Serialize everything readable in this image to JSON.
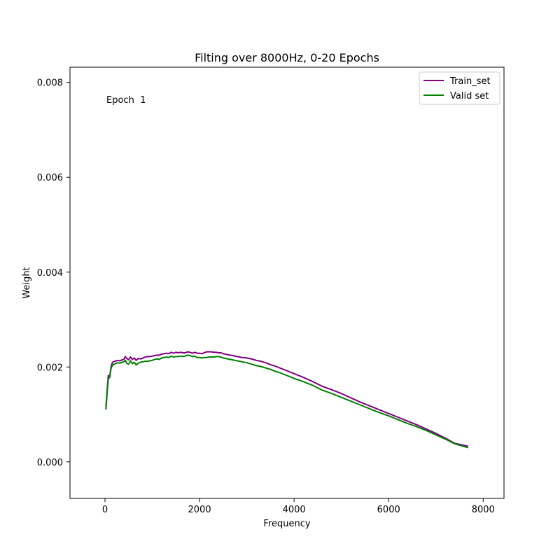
{
  "chart_data": {
    "type": "line",
    "title": "Filting over 8000Hz, 0-20 Epochs",
    "xlabel": "Frequency",
    "ylabel": "Weight",
    "annotation": "Epoch  1",
    "xlim": [
      -740,
      8440
    ],
    "ylim": [
      -0.00077,
      0.00832
    ],
    "xticks": [
      0,
      2000,
      4000,
      6000,
      8000
    ],
    "xtick_labels": [
      "0",
      "2000",
      "4000",
      "6000",
      "8000"
    ],
    "yticks": [
      0.0,
      0.002,
      0.004,
      0.006,
      0.008
    ],
    "ytick_labels": [
      "0.000",
      "0.002",
      "0.004",
      "0.006",
      "0.008"
    ],
    "grid": false,
    "legend_position": "top-right",
    "series": [
      {
        "name": "Train_set",
        "color": "#800080",
        "x": [
          20,
          45,
          70,
          100,
          130,
          160,
          200,
          240,
          280,
          320,
          360,
          400,
          430,
          460,
          500,
          540,
          580,
          620,
          660,
          700,
          750,
          800,
          850,
          900,
          950,
          1000,
          1050,
          1100,
          1150,
          1200,
          1250,
          1300,
          1350,
          1400,
          1450,
          1500,
          1550,
          1600,
          1650,
          1700,
          1750,
          1800,
          1850,
          1900,
          1950,
          2000,
          2050,
          2100,
          2150,
          2200,
          2250,
          2300,
          2350,
          2400,
          2450,
          2500,
          2550,
          2600,
          2700,
          2800,
          2900,
          3000,
          3100,
          3200,
          3300,
          3400,
          3500,
          3600,
          3700,
          3800,
          3900,
          4000,
          4200,
          4400,
          4600,
          4800,
          5000,
          5200,
          5400,
          5600,
          5800,
          6000,
          6200,
          6400,
          6600,
          6800,
          7000,
          7200,
          7400,
          7680
        ],
        "y": [
          0.00115,
          0.0015,
          0.00182,
          0.0018,
          0.00202,
          0.0021,
          0.00212,
          0.00213,
          0.00214,
          0.00213,
          0.00215,
          0.00216,
          0.00222,
          0.00218,
          0.00215,
          0.00221,
          0.00216,
          0.00219,
          0.00214,
          0.00218,
          0.00217,
          0.00219,
          0.00221,
          0.00222,
          0.00222,
          0.00223,
          0.00224,
          0.00225,
          0.00225,
          0.00227,
          0.00228,
          0.00229,
          0.00228,
          0.00231,
          0.00229,
          0.00231,
          0.0023,
          0.00231,
          0.0023,
          0.0023,
          0.00232,
          0.00231,
          0.00229,
          0.00231,
          0.00229,
          0.00229,
          0.00228,
          0.0023,
          0.00232,
          0.00232,
          0.00232,
          0.00231,
          0.00231,
          0.0023,
          0.0023,
          0.00228,
          0.00227,
          0.00226,
          0.00224,
          0.00222,
          0.0022,
          0.00219,
          0.00217,
          0.00214,
          0.00212,
          0.00209,
          0.00205,
          0.00202,
          0.00198,
          0.00194,
          0.0019,
          0.00186,
          0.00178,
          0.00169,
          0.00159,
          0.00152,
          0.00144,
          0.00135,
          0.00126,
          0.00118,
          0.0011,
          0.00102,
          0.00094,
          0.00086,
          0.00078,
          0.00069,
          0.0006,
          0.0005,
          0.00039,
          0.00033
        ]
      },
      {
        "name": "Valid set",
        "color": "#008000",
        "x": [
          20,
          45,
          70,
          100,
          130,
          160,
          200,
          240,
          280,
          320,
          360,
          400,
          430,
          460,
          500,
          540,
          580,
          620,
          660,
          700,
          750,
          800,
          850,
          900,
          950,
          1000,
          1050,
          1100,
          1150,
          1200,
          1250,
          1300,
          1350,
          1400,
          1450,
          1500,
          1550,
          1600,
          1650,
          1700,
          1750,
          1800,
          1850,
          1900,
          1950,
          2000,
          2050,
          2100,
          2150,
          2200,
          2250,
          2300,
          2350,
          2400,
          2450,
          2500,
          2550,
          2600,
          2700,
          2800,
          2900,
          3000,
          3100,
          3200,
          3300,
          3400,
          3500,
          3600,
          3700,
          3800,
          3900,
          4000,
          4200,
          4400,
          4600,
          4800,
          5000,
          5200,
          5400,
          5600,
          5800,
          6000,
          6200,
          6400,
          6600,
          6800,
          7000,
          7200,
          7400,
          7680
        ],
        "y": [
          0.0011,
          0.00145,
          0.00175,
          0.00178,
          0.00198,
          0.00204,
          0.00206,
          0.00208,
          0.00209,
          0.00208,
          0.0021,
          0.00211,
          0.00214,
          0.00208,
          0.00206,
          0.00213,
          0.00207,
          0.0021,
          0.00204,
          0.00208,
          0.0021,
          0.00211,
          0.00212,
          0.00212,
          0.00213,
          0.00214,
          0.00216,
          0.00217,
          0.00216,
          0.00219,
          0.0022,
          0.00221,
          0.0022,
          0.00223,
          0.00221,
          0.00222,
          0.00222,
          0.00223,
          0.00222,
          0.00223,
          0.00225,
          0.00224,
          0.00222,
          0.00223,
          0.0022,
          0.0022,
          0.00219,
          0.0022,
          0.0022,
          0.00221,
          0.00221,
          0.00221,
          0.00222,
          0.00222,
          0.00221,
          0.00219,
          0.00218,
          0.00217,
          0.00215,
          0.00213,
          0.00211,
          0.00209,
          0.00206,
          0.00203,
          0.00201,
          0.00198,
          0.00195,
          0.00191,
          0.00188,
          0.00184,
          0.0018,
          0.00176,
          0.00169,
          0.00161,
          0.00151,
          0.00144,
          0.00136,
          0.00128,
          0.0012,
          0.00112,
          0.00104,
          0.00097,
          0.00089,
          0.00081,
          0.00074,
          0.00066,
          0.00057,
          0.00048,
          0.00038,
          0.0003
        ]
      }
    ]
  }
}
